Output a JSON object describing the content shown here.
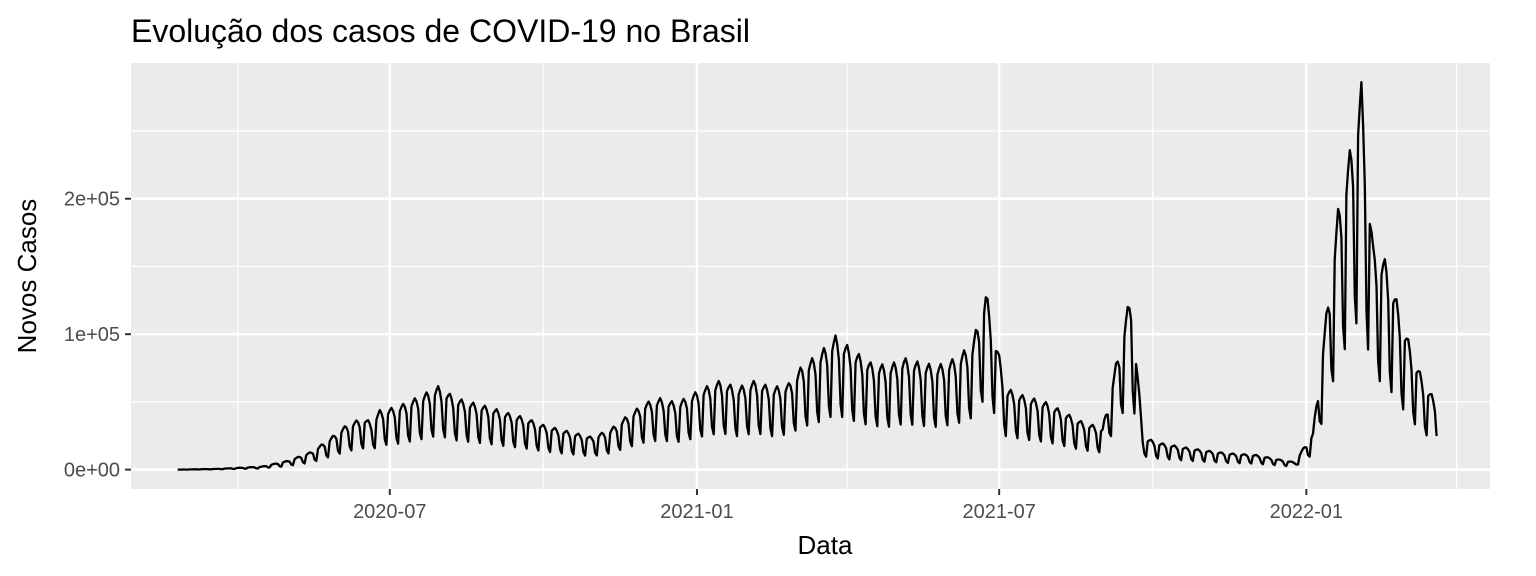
{
  "chart_data": {
    "type": "line",
    "title": "Evolução dos casos de COVID-19 no Brasil",
    "xlabel": "Data",
    "ylabel": "Novos Casos",
    "x_range": [
      "2020-01-28",
      "2022-04-21"
    ],
    "ylim": [
      -14300,
      300200
    ],
    "x_ticks": [
      {
        "date": "2020-07-01",
        "label": "2020-07"
      },
      {
        "date": "2021-01-01",
        "label": "2021-01"
      },
      {
        "date": "2021-07-01",
        "label": "2021-07"
      },
      {
        "date": "2022-01-01",
        "label": "2022-01"
      }
    ],
    "x_minor_ticks": [
      "2020-04-01",
      "2020-10-01",
      "2021-04-01",
      "2021-10-01",
      "2022-04-01"
    ],
    "y_ticks": [
      {
        "value": 0,
        "label": "0e+00"
      },
      {
        "value": 100000,
        "label": "1e+05"
      },
      {
        "value": 200000,
        "label": "2e+05"
      }
    ],
    "y_minor_ticks": [
      50000,
      150000,
      250000
    ],
    "grid": true,
    "panel_color": "#ebebeb",
    "grid_color": "#ffffff",
    "line_color": "#000000",
    "series": [
      {
        "x": [
          "2020-02-25",
          "2020-03-20",
          "2020-04-15",
          "2020-05-01",
          "2020-05-15",
          "2020-05-25",
          "2020-06-05",
          "2020-06-15",
          "2020-06-20",
          "2020-06-25",
          "2020-07-05",
          "2020-07-20",
          "2020-07-30",
          "2020-08-10",
          "2020-08-20",
          "2020-08-30",
          "2020-09-10",
          "2020-09-20",
          "2020-10-01",
          "2020-10-15",
          "2020-10-30",
          "2020-11-10",
          "2020-11-20",
          "2020-12-01",
          "2020-12-10",
          "2020-12-20",
          "2021-01-05",
          "2021-01-15",
          "2021-01-25",
          "2021-02-05",
          "2021-02-15",
          "2021-02-25",
          "2021-03-05",
          "2021-03-15",
          "2021-03-25",
          "2021-04-05",
          "2021-04-15",
          "2021-04-25",
          "2021-05-05",
          "2021-05-15",
          "2021-05-25",
          "2021-06-05",
          "2021-06-15",
          "2021-06-23",
          "2021-07-05",
          "2021-07-15",
          "2021-07-30",
          "2021-08-10",
          "2021-08-20",
          "2021-09-01",
          "2021-09-18",
          "2021-09-25",
          "2021-10-05",
          "2021-10-20",
          "2021-11-01",
          "2021-11-15",
          "2021-12-01",
          "2021-12-15",
          "2021-12-25",
          "2022-01-05",
          "2022-01-12",
          "2022-01-20",
          "2022-01-28",
          "2022-02-03",
          "2022-02-10",
          "2022-02-18",
          "2022-02-25",
          "2022-03-05",
          "2022-03-12",
          "2022-03-20"
        ],
        "y": [
          0,
          500,
          2000,
          6000,
          12000,
          20000,
          30000,
          35000,
          32000,
          40000,
          42000,
          50000,
          56000,
          48000,
          45000,
          42000,
          38000,
          35000,
          30000,
          26000,
          22000,
          27000,
          36000,
          45000,
          48000,
          45000,
          55000,
          60000,
          55000,
          60000,
          55000,
          58000,
          70000,
          78000,
          90000,
          80000,
          72000,
          70000,
          75000,
          72000,
          70000,
          75000,
          85000,
          120000,
          55000,
          50000,
          45000,
          38000,
          32000,
          28000,
          120000,
          22000,
          18000,
          15000,
          13000,
          11000,
          10000,
          7000,
          5000,
          25000,
          95000,
          175000,
          220000,
          260000,
          150000,
          140000,
          110000,
          80000,
          60000,
          45000
        ]
      }
    ]
  }
}
